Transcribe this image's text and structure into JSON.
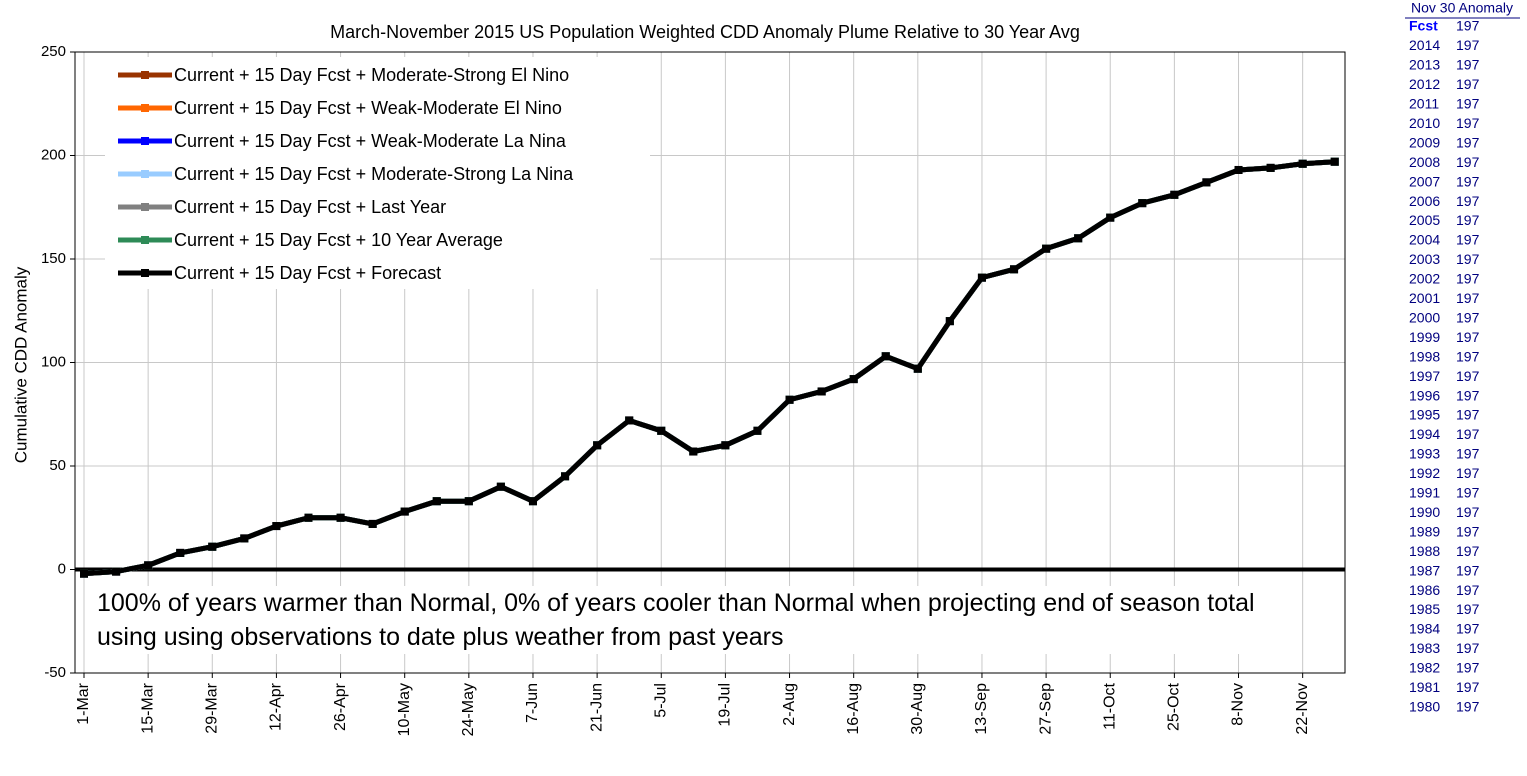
{
  "chart_data": {
    "type": "line",
    "title": "March-November 2015 US Population Weighted CDD Anomaly Plume Relative to 30 Year Avg",
    "y_label": "Cumulative CDD Anomaly",
    "annotation": "100% of years warmer than Normal, 0% of years cooler than Normal when projecting end of season total using using observations to date plus weather from past years",
    "categories": [
      "1-Mar",
      null,
      "15-Mar",
      null,
      "29-Mar",
      null,
      "12-Apr",
      null,
      "26-Apr",
      null,
      "10-May",
      null,
      "24-May",
      null,
      "7-Jun",
      null,
      "21-Jun",
      null,
      "5-Jul",
      null,
      "19-Jul",
      null,
      "2-Aug",
      null,
      "16-Aug",
      null,
      "30-Aug",
      null,
      "13-Sep",
      null,
      "27-Sep",
      null,
      "11-Oct",
      null,
      "25-Oct",
      null,
      "8-Nov",
      null,
      "22-Nov",
      null
    ],
    "series": [
      {
        "name": "Current + 15 Day Fcst + Moderate-Strong El Nino",
        "color": "#993300",
        "values": [
          -2,
          -1,
          2,
          8,
          11,
          15,
          21,
          25,
          25,
          22,
          28,
          33,
          33,
          40,
          33,
          45,
          60,
          72,
          67,
          57,
          60,
          67,
          82,
          86,
          92,
          103,
          97,
          120,
          141,
          145,
          155,
          160,
          170,
          177,
          181,
          187,
          193,
          194,
          196,
          197
        ]
      },
      {
        "name": "Current + 15 Day Fcst + Weak-Moderate El Nino",
        "color": "#ff6600",
        "values": [
          -2,
          -1,
          2,
          8,
          11,
          15,
          21,
          25,
          25,
          22,
          28,
          33,
          33,
          40,
          33,
          45,
          60,
          72,
          67,
          57,
          60,
          67,
          82,
          86,
          92,
          103,
          97,
          120,
          141,
          145,
          155,
          160,
          170,
          177,
          181,
          187,
          193,
          194,
          196,
          197
        ]
      },
      {
        "name": "Current + 15 Day Fcst + Weak-Moderate La Nina",
        "color": "#0000ff",
        "values": [
          -2,
          -1,
          2,
          8,
          11,
          15,
          21,
          25,
          25,
          22,
          28,
          33,
          33,
          40,
          33,
          45,
          60,
          72,
          67,
          57,
          60,
          67,
          82,
          86,
          92,
          103,
          97,
          120,
          141,
          145,
          155,
          160,
          170,
          177,
          181,
          187,
          193,
          194,
          196,
          197
        ]
      },
      {
        "name": "Current + 15 Day Fcst + Moderate-Strong La Nina",
        "color": "#99ccff",
        "values": [
          -2,
          -1,
          2,
          8,
          11,
          15,
          21,
          25,
          25,
          22,
          28,
          33,
          33,
          40,
          33,
          45,
          60,
          72,
          67,
          57,
          60,
          67,
          82,
          86,
          92,
          103,
          97,
          120,
          141,
          145,
          155,
          160,
          170,
          177,
          181,
          187,
          193,
          194,
          196,
          197
        ]
      },
      {
        "name": "Current + 15 Day Fcst + Last Year",
        "color": "#808080",
        "values": [
          -2,
          -1,
          2,
          8,
          11,
          15,
          21,
          25,
          25,
          22,
          28,
          33,
          33,
          40,
          33,
          45,
          60,
          72,
          67,
          57,
          60,
          67,
          82,
          86,
          92,
          103,
          97,
          120,
          141,
          145,
          155,
          160,
          170,
          177,
          181,
          187,
          193,
          194,
          196,
          197
        ]
      },
      {
        "name": "Current + 15 Day Fcst + 10 Year Average",
        "color": "#2e8b57",
        "values": [
          -2,
          -1,
          2,
          8,
          11,
          15,
          21,
          25,
          25,
          22,
          28,
          33,
          33,
          40,
          33,
          45,
          60,
          72,
          67,
          57,
          60,
          67,
          82,
          86,
          92,
          103,
          97,
          120,
          141,
          145,
          155,
          160,
          170,
          177,
          181,
          187,
          193,
          194,
          196,
          197
        ]
      },
      {
        "name": "Current + 15 Day Fcst + Forecast",
        "color": "#000000",
        "values": [
          -2,
          -1,
          2,
          8,
          11,
          15,
          21,
          25,
          25,
          22,
          28,
          33,
          33,
          40,
          33,
          45,
          60,
          72,
          67,
          57,
          60,
          67,
          82,
          86,
          92,
          103,
          97,
          120,
          141,
          145,
          155,
          160,
          170,
          177,
          181,
          187,
          193,
          194,
          196,
          197
        ]
      }
    ],
    "ylim": [
      -50,
      250
    ],
    "yticks": [
      -50,
      0,
      50,
      100,
      150,
      200,
      250
    ],
    "grid": true
  },
  "table": {
    "header": "Nov 30 Anomaly",
    "rows": [
      [
        "Fcst",
        "197"
      ],
      [
        "2014",
        "197"
      ],
      [
        "2013",
        "197"
      ],
      [
        "2012",
        "197"
      ],
      [
        "2011",
        "197"
      ],
      [
        "2010",
        "197"
      ],
      [
        "2009",
        "197"
      ],
      [
        "2008",
        "197"
      ],
      [
        "2007",
        "197"
      ],
      [
        "2006",
        "197"
      ],
      [
        "2005",
        "197"
      ],
      [
        "2004",
        "197"
      ],
      [
        "2003",
        "197"
      ],
      [
        "2002",
        "197"
      ],
      [
        "2001",
        "197"
      ],
      [
        "2000",
        "197"
      ],
      [
        "1999",
        "197"
      ],
      [
        "1998",
        "197"
      ],
      [
        "1997",
        "197"
      ],
      [
        "1996",
        "197"
      ],
      [
        "1995",
        "197"
      ],
      [
        "1994",
        "197"
      ],
      [
        "1993",
        "197"
      ],
      [
        "1992",
        "197"
      ],
      [
        "1991",
        "197"
      ],
      [
        "1990",
        "197"
      ],
      [
        "1989",
        "197"
      ],
      [
        "1988",
        "197"
      ],
      [
        "1987",
        "197"
      ],
      [
        "1986",
        "197"
      ],
      [
        "1985",
        "197"
      ],
      [
        "1984",
        "197"
      ],
      [
        "1983",
        "197"
      ],
      [
        "1982",
        "197"
      ],
      [
        "1981",
        "197"
      ],
      [
        "1980",
        "197"
      ]
    ]
  }
}
